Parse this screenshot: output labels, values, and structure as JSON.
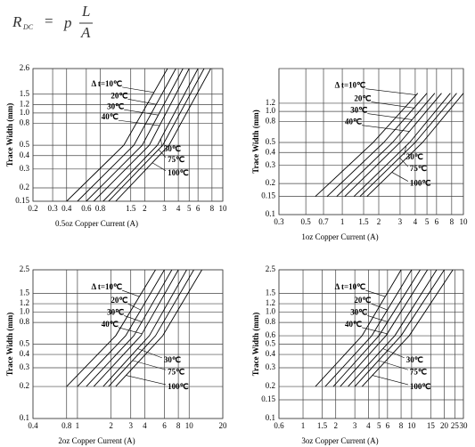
{
  "formula": {
    "lhs": "R",
    "lhs_sub": "DC",
    "eq": "=",
    "rho": "p",
    "num": "L",
    "den": "A"
  },
  "chart_data": [
    {
      "type": "line",
      "xlabel": "0.5oz Copper Current (A)",
      "ylabel": "Trace Width (mm)",
      "log_x": true,
      "log_y": true,
      "grid": true,
      "xlim": [
        0.2,
        10
      ],
      "ylim": [
        0.15,
        2.6
      ],
      "xticks": [
        0.2,
        0.3,
        0.4,
        0.6,
        0.8,
        1.5,
        2,
        3,
        4,
        5,
        6,
        8,
        10
      ],
      "yticks": [
        0.15,
        0.2,
        0.3,
        0.4,
        0.5,
        0.8,
        {
          "value": 1,
          "label": "1.0"
        },
        1.2,
        1.5,
        2.6
      ],
      "series": [
        {
          "name": "Δ t=10℃",
          "color": "#000000",
          "x": [
            0.4,
            1.3,
            3.2
          ],
          "values": [
            0.15,
            0.5,
            2.6
          ]
        },
        {
          "name": "20℃",
          "color": "#000000",
          "x": [
            0.5,
            1.6,
            3.8
          ],
          "values": [
            0.15,
            0.5,
            2.6
          ]
        },
        {
          "name": "30℃",
          "color": "#000000",
          "x": [
            0.6,
            1.9,
            4.4
          ],
          "values": [
            0.15,
            0.5,
            2.6
          ]
        },
        {
          "name": "40℃",
          "color": "#000000",
          "x": [
            0.7,
            2.2,
            5
          ],
          "values": [
            0.15,
            0.5,
            2.6
          ]
        },
        {
          "name": "30℃",
          "color": "#000000",
          "x": [
            0.85,
            2.6,
            6
          ],
          "values": [
            0.15,
            0.5,
            2.6
          ]
        },
        {
          "name": "75℃",
          "color": "#000000",
          "x": [
            0.95,
            2.9,
            6.8
          ],
          "values": [
            0.15,
            0.5,
            2.6
          ]
        },
        {
          "name": "100℃",
          "color": "#000000",
          "x": [
            1.1,
            3.3,
            7.8
          ],
          "values": [
            0.15,
            0.5,
            2.6
          ]
        }
      ]
    },
    {
      "type": "line",
      "xlabel": "1oz Copper Current (A)",
      "ylabel": "Trace Width (mm)",
      "log_x": true,
      "log_y": true,
      "grid": true,
      "xlim": [
        0.3,
        10
      ],
      "ylim": [
        0.1,
        2.6
      ],
      "xticks": [
        0.3,
        0.5,
        0.7,
        1,
        1.5,
        2,
        3,
        4,
        5,
        6,
        8,
        10
      ],
      "yticks": [
        0.1,
        0.15,
        0.2,
        0.3,
        0.4,
        0.5,
        0.8,
        {
          "value": 1,
          "label": "1.0"
        },
        1.2
      ],
      "series": [
        {
          "name": "Δ t=10℃",
          "color": "#000000",
          "x": [
            0.6,
            1.8,
            4.2
          ],
          "values": [
            0.15,
            0.5,
            1.5
          ]
        },
        {
          "name": "20℃",
          "color": "#000000",
          "x": [
            0.75,
            2.2,
            5
          ],
          "values": [
            0.15,
            0.5,
            1.5
          ]
        },
        {
          "name": "30℃",
          "color": "#000000",
          "x": [
            0.9,
            2.6,
            5.8
          ],
          "values": [
            0.15,
            0.5,
            1.5
          ]
        },
        {
          "name": "40℃",
          "color": "#000000",
          "x": [
            1.05,
            3,
            6.6
          ],
          "values": [
            0.15,
            0.5,
            1.5
          ]
        },
        {
          "name": "30℃",
          "color": "#000000",
          "x": [
            1.25,
            3.6,
            7.8
          ],
          "values": [
            0.15,
            0.5,
            1.5
          ]
        },
        {
          "name": "75℃",
          "color": "#000000",
          "x": [
            1.4,
            4,
            8.8
          ],
          "values": [
            0.15,
            0.5,
            1.5
          ]
        },
        {
          "name": "100℃",
          "color": "#000000",
          "x": [
            1.6,
            4.6,
            10
          ],
          "values": [
            0.15,
            0.5,
            1.5
          ]
        }
      ]
    },
    {
      "type": "line",
      "xlabel": "2oz Copper Current (A)",
      "ylabel": "Trace Width (mm)",
      "log_x": true,
      "log_y": true,
      "grid": true,
      "xlim": [
        0.4,
        20
      ],
      "ylim": [
        0.1,
        2.5
      ],
      "xticks": [
        0.4,
        0.8,
        1,
        2,
        3,
        4,
        6,
        8,
        10,
        20
      ],
      "yticks": [
        0.1,
        0.2,
        0.3,
        0.4,
        0.5,
        0.8,
        {
          "value": 1,
          "label": "1.0"
        },
        1.2,
        1.5,
        2.5
      ],
      "series": [
        {
          "name": "Δ t=10℃",
          "color": "#000000",
          "x": [
            0.8,
            2.2,
            5
          ],
          "values": [
            0.2,
            0.6,
            2.5
          ]
        },
        {
          "name": "20℃",
          "color": "#000000",
          "x": [
            1,
            2.7,
            6
          ],
          "values": [
            0.2,
            0.6,
            2.5
          ]
        },
        {
          "name": "30℃",
          "color": "#000000",
          "x": [
            1.2,
            3.2,
            7
          ],
          "values": [
            0.2,
            0.6,
            2.5
          ]
        },
        {
          "name": "40℃",
          "color": "#000000",
          "x": [
            1.4,
            3.7,
            8
          ],
          "values": [
            0.2,
            0.6,
            2.5
          ]
        },
        {
          "name": "30℃",
          "color": "#000000",
          "x": [
            1.7,
            4.4,
            9.5
          ],
          "values": [
            0.2,
            0.6,
            2.5
          ]
        },
        {
          "name": "75℃",
          "color": "#000000",
          "x": [
            1.9,
            5,
            11
          ],
          "values": [
            0.2,
            0.6,
            2.5
          ]
        },
        {
          "name": "100℃",
          "color": "#000000",
          "x": [
            2.2,
            5.8,
            13
          ],
          "values": [
            0.2,
            0.6,
            2.5
          ]
        }
      ]
    },
    {
      "type": "line",
      "xlabel": "3oz Copper Current (A)",
      "ylabel": "Trace Width (mm)",
      "log_x": true,
      "log_y": true,
      "grid": true,
      "xlim": [
        0.6,
        30
      ],
      "ylim": [
        0.1,
        2.5
      ],
      "xticks": [
        0.6,
        1,
        1.5,
        2,
        3,
        4,
        5,
        6,
        8,
        10,
        15,
        20,
        25,
        30
      ],
      "yticks": [
        0.1,
        0.15,
        0.2,
        0.3,
        0.4,
        0.5,
        0.6,
        0.8,
        {
          "value": 1,
          "label": "1.0"
        },
        1.2,
        1.5,
        2.5
      ],
      "series": [
        {
          "name": "Δ t=10℃",
          "color": "#000000",
          "x": [
            1.3,
            3.5,
            8
          ],
          "values": [
            0.2,
            0.6,
            2.5
          ]
        },
        {
          "name": "20℃",
          "color": "#000000",
          "x": [
            1.6,
            4.3,
            10
          ],
          "values": [
            0.2,
            0.6,
            2.5
          ]
        },
        {
          "name": "30℃",
          "color": "#000000",
          "x": [
            1.9,
            5,
            12
          ],
          "values": [
            0.2,
            0.6,
            2.5
          ]
        },
        {
          "name": "40℃",
          "color": "#000000",
          "x": [
            2.2,
            5.8,
            14
          ],
          "values": [
            0.2,
            0.6,
            2.5
          ]
        },
        {
          "name": "30℃",
          "color": "#000000",
          "x": [
            2.6,
            7,
            17
          ],
          "values": [
            0.2,
            0.6,
            2.5
          ]
        },
        {
          "name": "75℃",
          "color": "#000000",
          "x": [
            3,
            8,
            20
          ],
          "values": [
            0.2,
            0.6,
            2.5
          ]
        },
        {
          "name": "100℃",
          "color": "#000000",
          "x": [
            3.5,
            9.5,
            24
          ],
          "values": [
            0.2,
            0.6,
            2.5
          ]
        }
      ]
    }
  ]
}
